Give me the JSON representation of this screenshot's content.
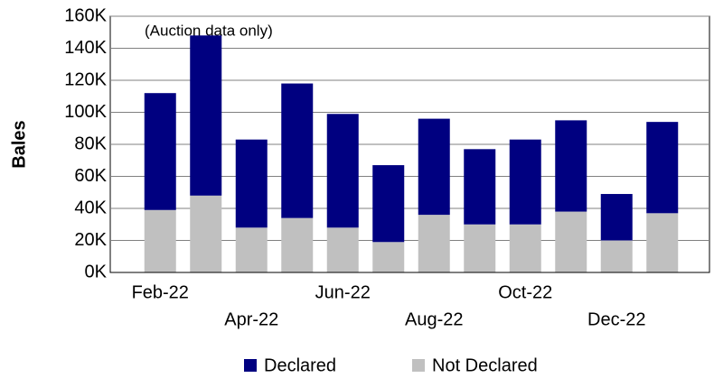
{
  "chart_data": {
    "type": "stacked_bar",
    "annotation": "(Auction data only)",
    "y_label": "Bales",
    "categories": [
      "Feb-22",
      null,
      "Apr-22",
      null,
      "Jun-22",
      null,
      "Aug-22",
      null,
      "Oct-22",
      null,
      "Dec-22",
      null
    ],
    "series": [
      {
        "name": "Not Declared",
        "color": "#c0c0c0",
        "values": [
          39000,
          48000,
          28000,
          34000,
          28000,
          19000,
          36000,
          30000,
          30000,
          38000,
          20000,
          37000
        ]
      },
      {
        "name": "Declared",
        "color": "#000080",
        "values": [
          73000,
          100000,
          55000,
          84000,
          71000,
          48000,
          60000,
          47000,
          53000,
          57000,
          29000,
          57000
        ]
      }
    ],
    "ylim": [
      0,
      160000
    ],
    "yticks": [
      {
        "value": 0,
        "label": "0K"
      },
      {
        "value": 20000,
        "label": "20K"
      },
      {
        "value": 40000,
        "label": "40K"
      },
      {
        "value": 60000,
        "label": "60K"
      },
      {
        "value": 80000,
        "label": "80K"
      },
      {
        "value": 100000,
        "label": "100K"
      },
      {
        "value": 120000,
        "label": "120K"
      },
      {
        "value": 140000,
        "label": "140K"
      },
      {
        "value": 160000,
        "label": "160K"
      }
    ],
    "grid": true,
    "legend": "bottom"
  }
}
